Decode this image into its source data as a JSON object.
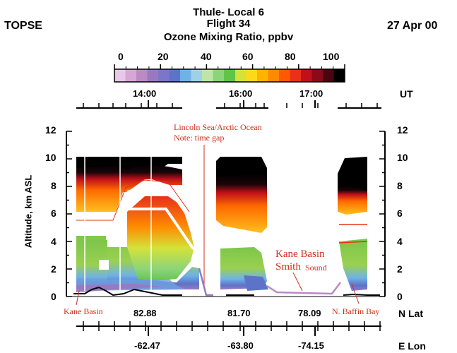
{
  "header": {
    "left": "TOPSE",
    "title1": "Thule- Local 6",
    "title2": "Flight 34",
    "title3": "Ozone Mixing Ratio, ppbv",
    "date": "27 Apr 00"
  },
  "colorbar": {
    "ticks": [
      "0",
      "20",
      "40",
      "60",
      "80",
      "100"
    ],
    "colors": [
      "#e8c8e8",
      "#d6a6d6",
      "#b98ac4",
      "#9a78c0",
      "#7b76c8",
      "#5d73c8",
      "#6fb3e6",
      "#9fd0ea",
      "#bde6a6",
      "#8cd47a",
      "#5ec548",
      "#d4e23a",
      "#ffd81c",
      "#ffb400",
      "#ff8a00",
      "#ff5a00",
      "#e8301a",
      "#c0101a",
      "#8a0a1a",
      "#4a0610",
      "#000000"
    ]
  },
  "axes": {
    "ut_label": "UT",
    "ut_ticks": [
      "14:00",
      "16:00",
      "17:00"
    ],
    "y_label": "Altitude, km ASL",
    "y_ticks": [
      "0",
      "2",
      "4",
      "6",
      "8",
      "10",
      "12"
    ],
    "lat_label": "N Lat",
    "lat_ticks": [
      "82.88",
      "81.70",
      "78.09"
    ],
    "lon_label": "E Lon",
    "lon_ticks": [
      "-62.47",
      "-63.80",
      "-74.15"
    ]
  },
  "annotations": {
    "lincoln1": "Lincoln Sea/Arctic Ocean",
    "lincoln2": "Note: time gap",
    "kane_basin_mid": "Kane Basin",
    "smith_sound": "Smith",
    "smith_sound2": "Sound",
    "kane_basin_bottom": "Kane Basin",
    "baffin": "N. Baffin Bay"
  },
  "chart_data": {
    "type": "heatmap",
    "title": "Ozone Mixing Ratio, ppbv",
    "ylabel": "Altitude, km ASL",
    "ylim": [
      0,
      12
    ],
    "colorbar_range": [
      0,
      100
    ],
    "colors_accent": {
      "annotation": "#d03020",
      "aircraft_track": "#000000"
    }
  }
}
